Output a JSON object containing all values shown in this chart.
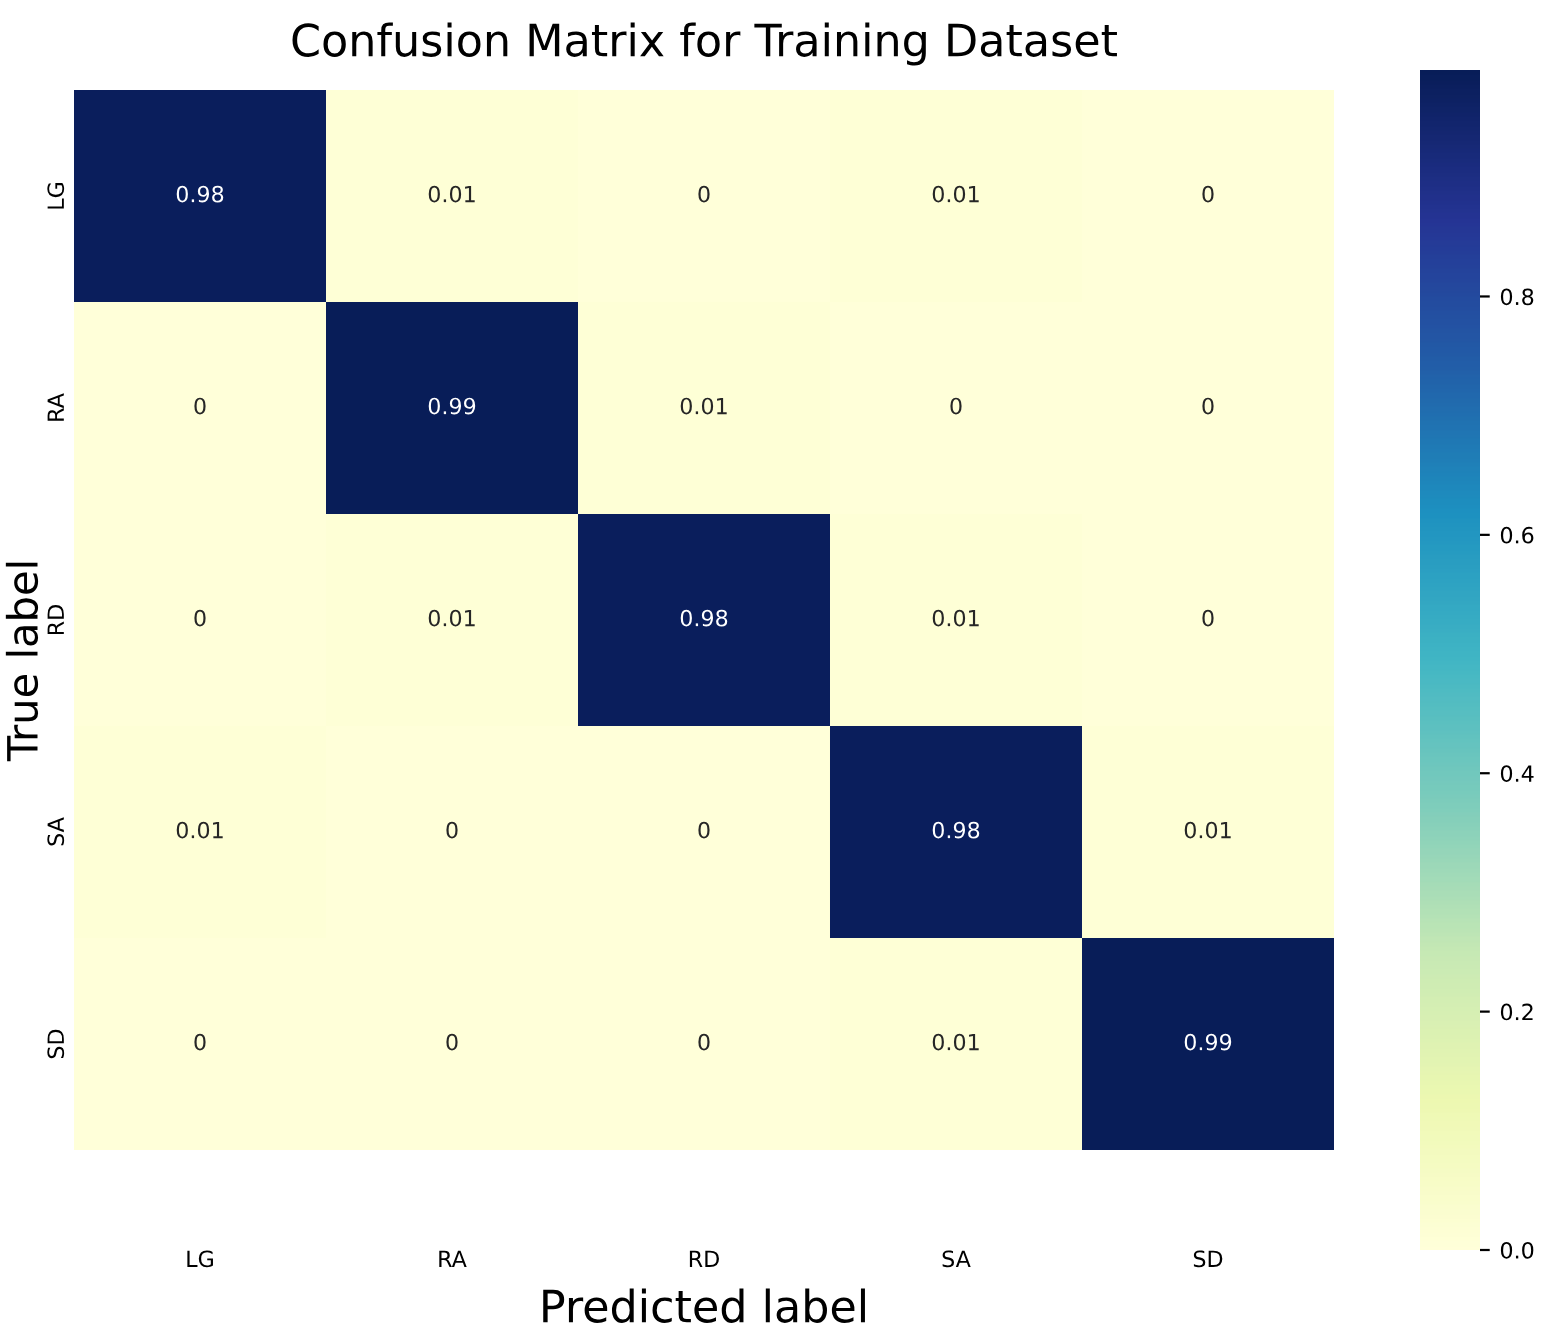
{
  "chart_data": {
    "type": "heatmap",
    "title": "Confusion Matrix for Training Dataset",
    "xlabel": "Predicted label",
    "ylabel": "True label",
    "categories": [
      "LG",
      "RA",
      "RD",
      "SA",
      "SD"
    ],
    "y_categories": [
      "LG",
      "RA",
      "RD",
      "SA",
      "SD"
    ],
    "cells": [
      [
        0.98,
        0.01,
        0,
        0.01,
        0
      ],
      [
        0,
        0.99,
        0.01,
        0,
        0
      ],
      [
        0,
        0.01,
        0.98,
        0.01,
        0
      ],
      [
        0.01,
        0,
        0,
        0.98,
        0.01
      ],
      [
        0,
        0,
        0,
        0.01,
        0.99
      ]
    ],
    "data_labels": true,
    "clim": [
      0,
      0.99
    ],
    "cticks": [
      {
        "value": 0,
        "label": "0.0"
      },
      {
        "value": 0.2,
        "label": "0.2"
      },
      {
        "value": 0.4,
        "label": "0.4"
      },
      {
        "value": 0.6,
        "label": "0.6"
      },
      {
        "value": 0.8,
        "label": "0.8"
      }
    ]
  }
}
